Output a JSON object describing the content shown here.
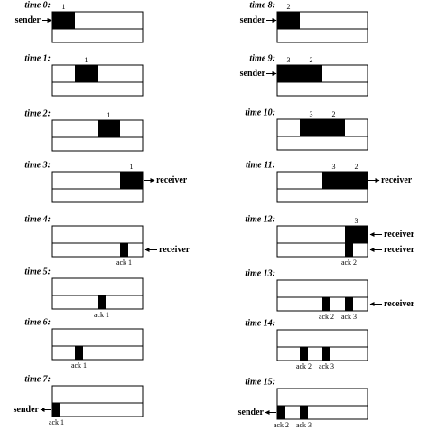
{
  "panels": [
    {
      "time": "time 0:",
      "data": [
        "1"
      ],
      "acks": [],
      "sides": [
        "sender"
      ]
    },
    {
      "time": "time 1:",
      "data": [
        "1"
      ],
      "acks": [],
      "sides": []
    },
    {
      "time": "time 2:",
      "data": [
        "1"
      ],
      "acks": [],
      "sides": []
    },
    {
      "time": "time 3:",
      "data": [
        "1"
      ],
      "acks": [],
      "sides": [
        "receiver"
      ]
    },
    {
      "time": "time 4:",
      "data": [],
      "acks": [
        "ack 1"
      ],
      "sides": [
        "receiver"
      ]
    },
    {
      "time": "time 5:",
      "data": [],
      "acks": [
        "ack 1"
      ],
      "sides": []
    },
    {
      "time": "time 6:",
      "data": [],
      "acks": [
        "ack 1"
      ],
      "sides": []
    },
    {
      "time": "time 7:",
      "data": [],
      "acks": [
        "ack 1"
      ],
      "sides": [
        "sender"
      ]
    },
    {
      "time": "time 8:",
      "data": [
        "2"
      ],
      "acks": [],
      "sides": [
        "sender"
      ]
    },
    {
      "time": "time 9:",
      "data": [
        "3",
        "2"
      ],
      "acks": [],
      "sides": [
        "sender"
      ]
    },
    {
      "time": "time 10:",
      "data": [
        "3",
        "2"
      ],
      "acks": [],
      "sides": []
    },
    {
      "time": "time 11:",
      "data": [
        "3",
        "2"
      ],
      "acks": [],
      "sides": [
        "receiver"
      ]
    },
    {
      "time": "time 12:",
      "data": [
        "3"
      ],
      "acks": [
        "ack 2"
      ],
      "sides": [
        "receiver",
        "receiver"
      ]
    },
    {
      "time": "time 13:",
      "data": [],
      "acks": [
        "ack 2",
        "ack 3"
      ],
      "sides": [
        "receiver"
      ]
    },
    {
      "time": "time 14:",
      "data": [],
      "acks": [
        "ack 2",
        "ack 3"
      ],
      "sides": []
    },
    {
      "time": "time 15:",
      "data": [],
      "acks": [
        "ack 2",
        "ack 3"
      ],
      "sides": [
        "sender"
      ]
    }
  ]
}
